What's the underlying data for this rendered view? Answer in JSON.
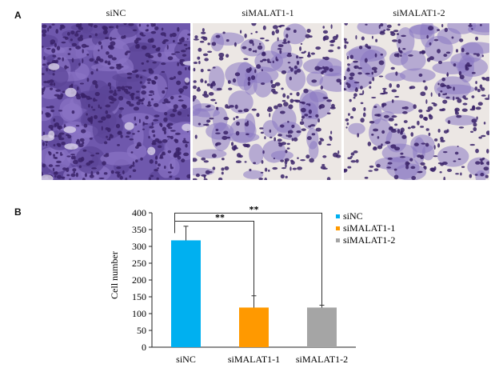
{
  "panels": {
    "a_label": "A",
    "b_label": "B"
  },
  "micrographs": [
    {
      "label": "siNC",
      "density": "high"
    },
    {
      "label": "siMALAT1-1",
      "density": "medium"
    },
    {
      "label": "siMALAT1-2",
      "density": "medium"
    }
  ],
  "colors": {
    "stain_dark": "#3a2268",
    "stain_light": "#8b79c3",
    "background_light": "#ece7e4",
    "siNC": "#00b0f0",
    "siMALAT1_1": "#ff9900",
    "siMALAT1_2": "#a5a5a5"
  },
  "chart_data": {
    "type": "bar",
    "categories": [
      "siNC",
      "siMALAT1-1",
      "siMALAT1-2"
    ],
    "values": [
      318,
      118,
      118
    ],
    "errors": [
      42,
      35,
      7
    ],
    "ylabel": "Cell number",
    "xlabel": "",
    "ylim": [
      0,
      400
    ],
    "yticks": [
      0,
      50,
      100,
      150,
      200,
      250,
      300,
      350,
      400
    ],
    "legend": [
      "siNC",
      "siMALAT1-1",
      "siMALAT1-2"
    ],
    "legend_position": "right",
    "significance": [
      {
        "from": "siNC",
        "to": "siMALAT1-1",
        "label": "**"
      },
      {
        "from": "siNC",
        "to": "siMALAT1-2",
        "label": "**"
      }
    ],
    "grid": false
  }
}
